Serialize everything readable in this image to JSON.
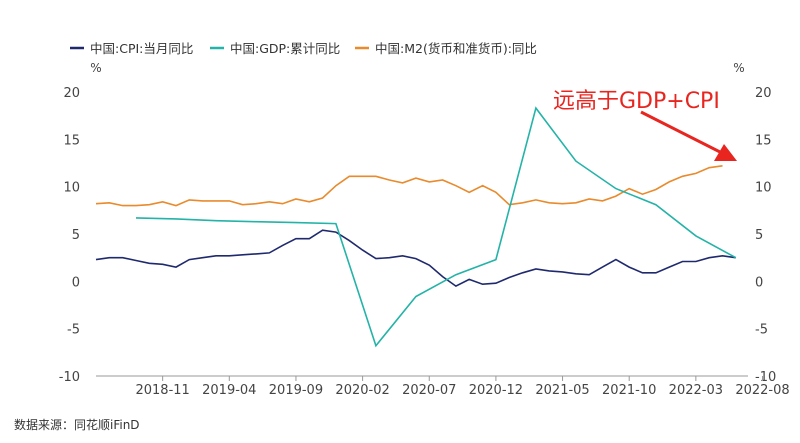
{
  "chart_data": {
    "type": "line",
    "legend_position": "top-left",
    "y_left_label": "%",
    "y_right_label": "%",
    "ylim": [
      -10,
      20
    ],
    "y_ticks": [
      -10,
      -5,
      0,
      5,
      10,
      15,
      20
    ],
    "x_tick_labels": [
      "2018-11",
      "2019-04",
      "2019-09",
      "2020-02",
      "2020-07",
      "2020-12",
      "2021-05",
      "2021-10",
      "2022-03",
      "2022-08"
    ],
    "grid": false,
    "annotation": {
      "text": "远高于GDP+CPI",
      "color": "#e8251f",
      "arrow": true
    },
    "series": [
      {
        "name": "中国:CPI:当月同比",
        "color": "#1f2a6e",
        "values": [
          2.3,
          2.5,
          2.5,
          2.2,
          1.9,
          1.8,
          1.5,
          2.3,
          2.5,
          2.7,
          2.7,
          2.8,
          2.9,
          3.0,
          3.8,
          4.5,
          4.5,
          5.4,
          5.2,
          4.3,
          3.3,
          2.4,
          2.5,
          2.7,
          2.4,
          1.7,
          0.5,
          -0.5,
          0.2,
          -0.3,
          -0.2,
          0.4,
          0.9,
          1.3,
          1.1,
          1.0,
          0.8,
          0.7,
          1.5,
          2.3,
          1.5,
          0.9,
          0.9,
          1.5,
          2.1,
          2.1,
          2.5,
          2.7,
          2.5
        ]
      },
      {
        "name": "中国:GDP:累计同比",
        "color": "#24b3a8",
        "points": [
          {
            "period": "2018-09",
            "value": 6.7
          },
          {
            "period": "2018-12",
            "value": 6.6
          },
          {
            "period": "2019-03",
            "value": 6.4
          },
          {
            "period": "2019-06",
            "value": 6.3
          },
          {
            "period": "2019-09",
            "value": 6.2
          },
          {
            "period": "2019-12",
            "value": 6.1
          },
          {
            "period": "2020-03",
            "value": -6.8
          },
          {
            "period": "2020-06",
            "value": -1.6
          },
          {
            "period": "2020-09",
            "value": 0.7
          },
          {
            "period": "2020-12",
            "value": 2.3
          },
          {
            "period": "2021-03",
            "value": 18.3
          },
          {
            "period": "2021-06",
            "value": 12.7
          },
          {
            "period": "2021-09",
            "value": 9.8
          },
          {
            "period": "2021-12",
            "value": 8.1
          },
          {
            "period": "2022-03",
            "value": 4.8
          },
          {
            "period": "2022-06",
            "value": 2.5
          }
        ]
      },
      {
        "name": "中国:M2(货币和准货币):同比",
        "color": "#e98a2c",
        "values": [
          8.2,
          8.3,
          8.0,
          8.0,
          8.1,
          8.4,
          8.0,
          8.6,
          8.5,
          8.5,
          8.5,
          8.1,
          8.2,
          8.4,
          8.2,
          8.7,
          8.4,
          8.8,
          10.1,
          11.1,
          11.1,
          11.1,
          10.7,
          10.4,
          10.9,
          10.5,
          10.7,
          10.1,
          9.4,
          10.1,
          9.4,
          8.1,
          8.3,
          8.6,
          8.3,
          8.2,
          8.3,
          8.7,
          8.5,
          9.0,
          9.8,
          9.2,
          9.7,
          10.5,
          11.1,
          11.4,
          12.0,
          12.2
        ]
      }
    ]
  },
  "source_text": "数据来源：同花顺iFinD"
}
